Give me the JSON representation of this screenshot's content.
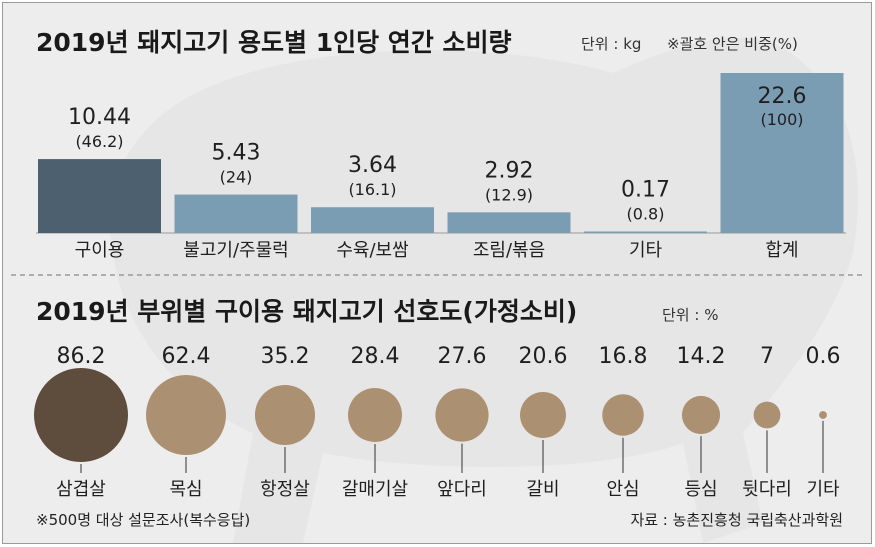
{
  "chart_data": [
    {
      "type": "bar",
      "title": "2019년 돼지고기 용도별 1인당 연간 소비량",
      "unit_note": "단위 : kg",
      "paren_note": "※괄호 안은 비중(%)",
      "categories": [
        "구이용",
        "불고기/주물럭",
        "수육/보쌈",
        "조림/볶음",
        "기타",
        "합계"
      ],
      "values": [
        10.44,
        5.43,
        3.64,
        2.92,
        0.17,
        22.6
      ],
      "value_labels": [
        "10.44",
        "5.43",
        "3.64",
        "2.92",
        "0.17",
        "22.6"
      ],
      "share_labels": [
        "(46.2)",
        "(24)",
        "(16.1)",
        "(12.9)",
        "(0.8)",
        "(100)"
      ],
      "colors": [
        "#4c6070",
        "#7b9db4",
        "#7b9db4",
        "#7b9db4",
        "#7b9db4",
        "#7b9db4"
      ],
      "ylim": [
        0,
        22.6
      ]
    },
    {
      "type": "bubble",
      "title": "2019년 부위별 구이용 돼지고기 선호도(가정소비)",
      "unit_note": "단위 : %",
      "categories": [
        "삼겹살",
        "목심",
        "항정살",
        "갈매기살",
        "앞다리",
        "갈비",
        "안심",
        "등심",
        "뒷다리",
        "기타"
      ],
      "values": [
        86.2,
        62.4,
        35.2,
        28.4,
        27.6,
        20.6,
        16.8,
        14.2,
        7,
        0.6
      ],
      "value_labels": [
        "86.2",
        "62.4",
        "35.2",
        "28.4",
        "27.6",
        "20.6",
        "16.8",
        "14.2",
        "7",
        "0.6"
      ],
      "colors": [
        "#5e4c3c",
        "#ac9072"
      ]
    }
  ],
  "footnote": "※500명 대상 설문조사(복수응답)",
  "source": "자료 : 농촌진흥청 국립축산과학원"
}
